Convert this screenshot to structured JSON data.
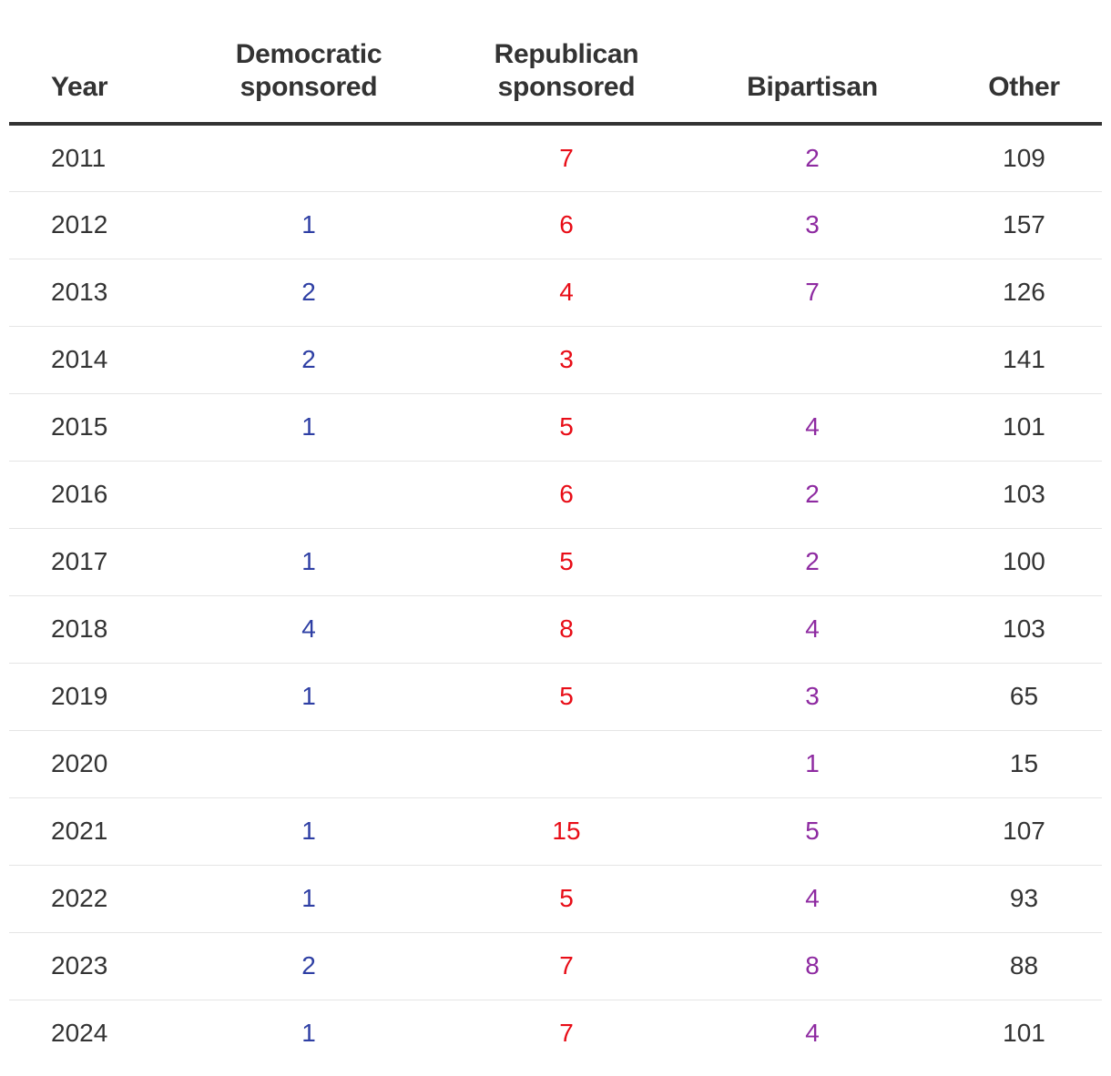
{
  "colors": {
    "text": "#333333",
    "democratic": "#2e3fa4",
    "republican": "#e80d17",
    "bipartisan": "#8e2aa1",
    "rule": "#333333",
    "row_divider": "#e5e5e5"
  },
  "table": {
    "headers": {
      "year": "Year",
      "democratic_line1": "Democratic",
      "democratic_line2": "sponsored",
      "republican_line1": "Republican",
      "republican_line2": "sponsored",
      "bipartisan": "Bipartisan",
      "other": "Other"
    },
    "rows": [
      {
        "year": "2011",
        "democratic": "",
        "republican": "7",
        "bipartisan": "2",
        "other": "109"
      },
      {
        "year": "2012",
        "democratic": "1",
        "republican": "6",
        "bipartisan": "3",
        "other": "157"
      },
      {
        "year": "2013",
        "democratic": "2",
        "republican": "4",
        "bipartisan": "7",
        "other": "126"
      },
      {
        "year": "2014",
        "democratic": "2",
        "republican": "3",
        "bipartisan": "",
        "other": "141"
      },
      {
        "year": "2015",
        "democratic": "1",
        "republican": "5",
        "bipartisan": "4",
        "other": "101"
      },
      {
        "year": "2016",
        "democratic": "",
        "republican": "6",
        "bipartisan": "2",
        "other": "103"
      },
      {
        "year": "2017",
        "democratic": "1",
        "republican": "5",
        "bipartisan": "2",
        "other": "100"
      },
      {
        "year": "2018",
        "democratic": "4",
        "republican": "8",
        "bipartisan": "4",
        "other": "103"
      },
      {
        "year": "2019",
        "democratic": "1",
        "republican": "5",
        "bipartisan": "3",
        "other": "65"
      },
      {
        "year": "2020",
        "democratic": "",
        "republican": "",
        "bipartisan": "1",
        "other": "15"
      },
      {
        "year": "2021",
        "democratic": "1",
        "republican": "15",
        "bipartisan": "5",
        "other": "107"
      },
      {
        "year": "2022",
        "democratic": "1",
        "republican": "5",
        "bipartisan": "4",
        "other": "93"
      },
      {
        "year": "2023",
        "democratic": "2",
        "republican": "7",
        "bipartisan": "8",
        "other": "88"
      },
      {
        "year": "2024",
        "democratic": "1",
        "republican": "7",
        "bipartisan": "4",
        "other": "101"
      }
    ]
  }
}
